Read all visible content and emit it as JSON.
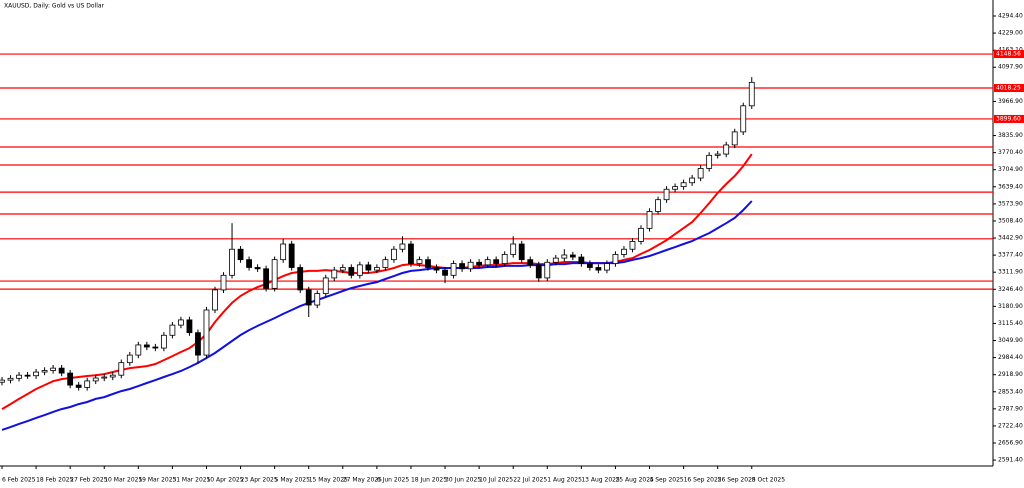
{
  "chart_data": {
    "type": "candlestick",
    "title": "XAUUSD, Daily: Gold vs US Dollar",
    "categories": [
      "6 Feb 2025",
      null,
      null,
      null,
      "18 Feb 2025",
      null,
      null,
      null,
      "27 Feb 2025",
      null,
      null,
      null,
      "10 Mar 2025",
      null,
      null,
      null,
      "19 Mar 2025",
      null,
      null,
      null,
      "31 Mar 2025",
      null,
      null,
      null,
      "10 Apr 2025",
      null,
      null,
      null,
      "23 Apr 2025",
      null,
      null,
      null,
      "5 May 2025",
      null,
      null,
      null,
      "15 May 2025",
      null,
      null,
      null,
      "27 May 2025",
      null,
      null,
      null,
      "6 Jun 2025",
      null,
      null,
      null,
      "18 Jun 2025",
      null,
      null,
      null,
      "30 Jun 2025",
      null,
      null,
      null,
      "10 Jul 2025",
      null,
      null,
      null,
      "22 Jul 2025",
      null,
      null,
      null,
      "1 Aug 2025",
      null,
      null,
      null,
      "13 Aug 2025",
      null,
      null,
      null,
      "25 Aug 2025",
      null,
      null,
      null,
      "4 Sep 2025",
      null,
      null,
      null,
      "16 Sep 2025",
      null,
      null,
      null,
      "26 Sep 2025",
      null,
      null,
      null,
      "8 Oct 2025"
    ],
    "candles": {
      "open": [
        2890,
        2898,
        2905,
        2917,
        2915,
        2929,
        2935,
        2944,
        2925,
        2879,
        2870,
        2895,
        2906,
        2910,
        2917,
        2965,
        2994,
        3033,
        3025,
        3021,
        3070,
        3109,
        3129,
        3080,
        2994,
        3167,
        3244,
        3300,
        3400,
        3360,
        3330,
        3325,
        3250,
        3360,
        3420,
        3330,
        3244,
        3186,
        3230,
        3290,
        3320,
        3330,
        3300,
        3340,
        3320,
        3330,
        3360,
        3400,
        3420,
        3345,
        3360,
        3330,
        3320,
        3300,
        3345,
        3325,
        3350,
        3340,
        3360,
        3345,
        3380,
        3420,
        3360,
        3340,
        3290,
        3350,
        3366,
        3378,
        3370,
        3345,
        3330,
        3320,
        3345,
        3380,
        3400,
        3430,
        3480,
        3545,
        3590,
        3630,
        3640,
        3655,
        3673,
        3710,
        3760,
        3765,
        3800,
        3850,
        3950
      ],
      "high": [
        2910,
        2917,
        2929,
        2929,
        2941,
        2947,
        2956,
        2956,
        2937,
        2891,
        2907,
        2918,
        2922,
        2929,
        2977,
        3006,
        3045,
        3045,
        3037,
        3082,
        3121,
        3141,
        3141,
        3092,
        3179,
        3256,
        3312,
        3500,
        3412,
        3372,
        3342,
        3337,
        3372,
        3440,
        3432,
        3342,
        3256,
        3242,
        3302,
        3332,
        3342,
        3342,
        3352,
        3352,
        3342,
        3372,
        3412,
        3450,
        3432,
        3372,
        3372,
        3342,
        3332,
        3357,
        3357,
        3362,
        3362,
        3372,
        3372,
        3392,
        3450,
        3432,
        3372,
        3352,
        3362,
        3378,
        3400,
        3390,
        3382,
        3357,
        3342,
        3357,
        3392,
        3412,
        3442,
        3492,
        3557,
        3602,
        3642,
        3652,
        3667,
        3685,
        3722,
        3772,
        3777,
        3812,
        3862,
        3962,
        4060
      ],
      "low": [
        2878,
        2886,
        2893,
        2903,
        2903,
        2917,
        2923,
        2913,
        2867,
        2858,
        2858,
        2883,
        2894,
        2898,
        2905,
        2953,
        2982,
        3013,
        3009,
        3009,
        3058,
        3097,
        3068,
        2960,
        2982,
        3155,
        3232,
        3288,
        3348,
        3318,
        3313,
        3238,
        3238,
        3348,
        3318,
        3232,
        3140,
        3174,
        3218,
        3278,
        3308,
        3288,
        3288,
        3308,
        3308,
        3318,
        3348,
        3388,
        3333,
        3333,
        3318,
        3308,
        3270,
        3288,
        3313,
        3313,
        3328,
        3328,
        3333,
        3333,
        3368,
        3348,
        3328,
        3275,
        3278,
        3338,
        3354,
        3358,
        3333,
        3318,
        3308,
        3308,
        3333,
        3368,
        3388,
        3418,
        3468,
        3533,
        3578,
        3618,
        3628,
        3643,
        3661,
        3698,
        3748,
        3753,
        3788,
        3838,
        3938
      ],
      "close": [
        2898,
        2905,
        2917,
        2915,
        2929,
        2935,
        2944,
        2925,
        2879,
        2870,
        2895,
        2906,
        2910,
        2917,
        2965,
        2994,
        3033,
        3025,
        3021,
        3070,
        3109,
        3129,
        3080,
        2994,
        3167,
        3244,
        3300,
        3400,
        3360,
        3330,
        3325,
        3250,
        3360,
        3420,
        3330,
        3244,
        3186,
        3230,
        3290,
        3320,
        3330,
        3300,
        3340,
        3320,
        3330,
        3360,
        3400,
        3420,
        3345,
        3360,
        3330,
        3320,
        3300,
        3345,
        3325,
        3350,
        3340,
        3360,
        3345,
        3380,
        3420,
        3360,
        3340,
        3290,
        3350,
        3366,
        3378,
        3370,
        3345,
        3330,
        3320,
        3345,
        3380,
        3400,
        3430,
        3480,
        3545,
        3590,
        3630,
        3640,
        3655,
        3673,
        3710,
        3760,
        3765,
        3800,
        3850,
        3950,
        4040
      ]
    },
    "series": [
      {
        "color": "#ff0000",
        "values": [
          2787,
          2806,
          2826,
          2845,
          2864,
          2879,
          2894,
          2902,
          2906,
          2910,
          2914,
          2917,
          2921,
          2929,
          2937,
          2944,
          2948,
          2952,
          2960,
          2975,
          2990,
          3006,
          3021,
          3044,
          3075,
          3121,
          3159,
          3194,
          3221,
          3240,
          3255,
          3267,
          3282,
          3297,
          3309,
          3313,
          3317,
          3317,
          3320,
          3317,
          3313,
          3309,
          3309,
          3309,
          3313,
          3320,
          3328,
          3339,
          3343,
          3339,
          3336,
          3332,
          3328,
          3328,
          3328,
          3332,
          3336,
          3339,
          3339,
          3343,
          3347,
          3347,
          3347,
          3343,
          3343,
          3347,
          3351,
          3351,
          3351,
          3347,
          3347,
          3347,
          3351,
          3359,
          3366,
          3382,
          3397,
          3416,
          3435,
          3458,
          3481,
          3504,
          3539,
          3577,
          3616,
          3650,
          3681,
          3719,
          3765
        ]
      },
      {
        "color": "#1010e0",
        "values": [
          2707,
          2718,
          2730,
          2741,
          2753,
          2764,
          2776,
          2787,
          2795,
          2806,
          2814,
          2826,
          2833,
          2845,
          2856,
          2864,
          2875,
          2887,
          2898,
          2910,
          2921,
          2933,
          2948,
          2964,
          2983,
          3002,
          3025,
          3048,
          3071,
          3090,
          3106,
          3121,
          3136,
          3152,
          3167,
          3182,
          3194,
          3205,
          3217,
          3228,
          3240,
          3251,
          3259,
          3267,
          3274,
          3286,
          3297,
          3309,
          3317,
          3320,
          3324,
          3328,
          3328,
          3328,
          3328,
          3328,
          3328,
          3332,
          3332,
          3336,
          3336,
          3336,
          3339,
          3339,
          3339,
          3343,
          3343,
          3347,
          3347,
          3347,
          3347,
          3347,
          3347,
          3351,
          3359,
          3366,
          3374,
          3385,
          3397,
          3408,
          3420,
          3431,
          3447,
          3462,
          3481,
          3500,
          3520,
          3550,
          3585
        ]
      }
    ],
    "levels": [
      {
        "value": 4148.56,
        "label": "4148.56"
      },
      {
        "value": 4018.25,
        "label": "4018.25"
      },
      {
        "value": 3899.6,
        "label": "3899.60"
      },
      3792,
      3723,
      3619,
      3535,
      3440,
      3278,
      3247
    ],
    "level_color": "#ff0000",
    "ylim": [
      2568.7,
      4355.8
    ],
    "yticks": [
      {
        "value": 4294.4,
        "label": "4294.40"
      },
      {
        "value": 4229,
        "label": "4229.00"
      },
      {
        "value": 4163.1,
        "label": "4163.10"
      },
      {
        "value": 4097.9,
        "label": "4097.90"
      },
      {
        "value": 3966.9,
        "label": "3966.90"
      },
      {
        "value": 3835.9,
        "label": "3835.90"
      },
      {
        "value": 3770.4,
        "label": "3770.40"
      },
      {
        "value": 3704.9,
        "label": "3704.90"
      },
      {
        "value": 3639.4,
        "label": "3639.40"
      },
      {
        "value": 3573.9,
        "label": "3573.90"
      },
      {
        "value": 3508.4,
        "label": "3508.40"
      },
      {
        "value": 3442.9,
        "label": "3442.90"
      },
      {
        "value": 3377.4,
        "label": "3377.40"
      },
      {
        "value": 3311.9,
        "label": "3311.90"
      },
      {
        "value": 3246.4,
        "label": "3246.40"
      },
      {
        "value": 3180.9,
        "label": "3180.90"
      },
      {
        "value": 3115.4,
        "label": "3115.40"
      },
      {
        "value": 3049.9,
        "label": "3049.90"
      },
      {
        "value": 2984.4,
        "label": "2984.40"
      },
      {
        "value": 2918.9,
        "label": "2918.90"
      },
      {
        "value": 2853.4,
        "label": "2853.40"
      },
      {
        "value": 2787.9,
        "label": "2787.90"
      },
      {
        "value": 2722.4,
        "label": "2722.40"
      },
      {
        "value": 2656.9,
        "label": "2656.90"
      },
      {
        "value": 2591.4,
        "label": "2591.40"
      }
    ]
  }
}
